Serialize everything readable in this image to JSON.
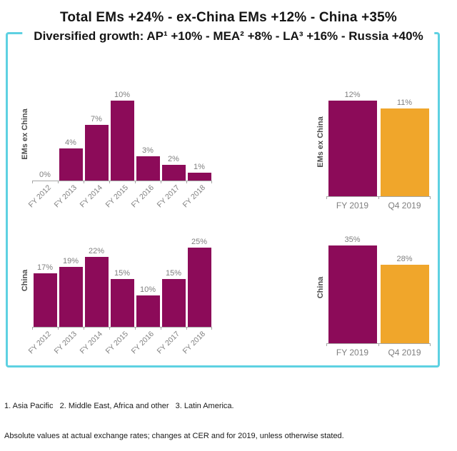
{
  "title": {
    "line1": "Total EMs +24% - ex-China EMs +12% - China +35%",
    "line2": "Diversified growth: AP¹ +10% - MEA² +8% - LA³ +16% - Russia +40%"
  },
  "footnotes": {
    "line1": "1. Asia Pacific   2. Middle East, Africa and other   3. Latin America.",
    "line2": "Absolute values at actual exchange rates; changes at CER and for 2019, unless otherwise stated."
  },
  "colors": {
    "magenta": "#8C0B59",
    "amber": "#F0A62B",
    "frame_teal": "#5ED1E2",
    "axis_gray": "#A6A6A6",
    "value_label_gray": "#7F7F7F",
    "ytitle_gray": "#4D4D4D"
  },
  "chart_data": [
    {
      "id": "ems-ex-china-history",
      "type": "bar",
      "ylabel": "EMs ex China",
      "xlabel": "",
      "unit": "%",
      "categories": [
        "FY 2012",
        "FY 2013",
        "FY 2014",
        "FY 2015",
        "FY 2016",
        "FY 2017",
        "FY 2018"
      ],
      "values": [
        0,
        4,
        7,
        10,
        3,
        2,
        1
      ],
      "bar_color": "#8C0B59",
      "ylim": [
        0,
        11.6
      ],
      "grid": false,
      "legend": "none",
      "xlabel_rotation": -45
    },
    {
      "id": "ems-ex-china-2019",
      "type": "bar",
      "ylabel": "EMs ex China",
      "xlabel": "",
      "unit": "%",
      "categories": [
        "FY 2019",
        "Q4 2019"
      ],
      "values": [
        12,
        11
      ],
      "bar_colors": [
        "#8C0B59",
        "#F0A62B"
      ],
      "ylim": [
        0,
        13.7
      ],
      "grid": false,
      "legend": "none",
      "xlabel_rotation": 0
    },
    {
      "id": "china-history",
      "type": "bar",
      "ylabel": "China",
      "xlabel": "",
      "unit": "%",
      "categories": [
        "FY 2012",
        "FY 2013",
        "FY 2014",
        "FY 2015",
        "FY 2016",
        "FY 2017",
        "FY 2018"
      ],
      "values": [
        17,
        19,
        22,
        15,
        10,
        15,
        25
      ],
      "bar_color": "#8C0B59",
      "ylim": [
        0,
        29.3
      ],
      "grid": false,
      "legend": "none",
      "xlabel_rotation": -45
    },
    {
      "id": "china-2019",
      "type": "bar",
      "ylabel": "China",
      "xlabel": "",
      "unit": "%",
      "categories": [
        "FY 2019",
        "Q4 2019"
      ],
      "values": [
        35,
        28
      ],
      "bar_colors": [
        "#8C0B59",
        "#F0A62B"
      ],
      "ylim": [
        0,
        39.8
      ],
      "grid": false,
      "legend": "none",
      "xlabel_rotation": 0
    }
  ]
}
